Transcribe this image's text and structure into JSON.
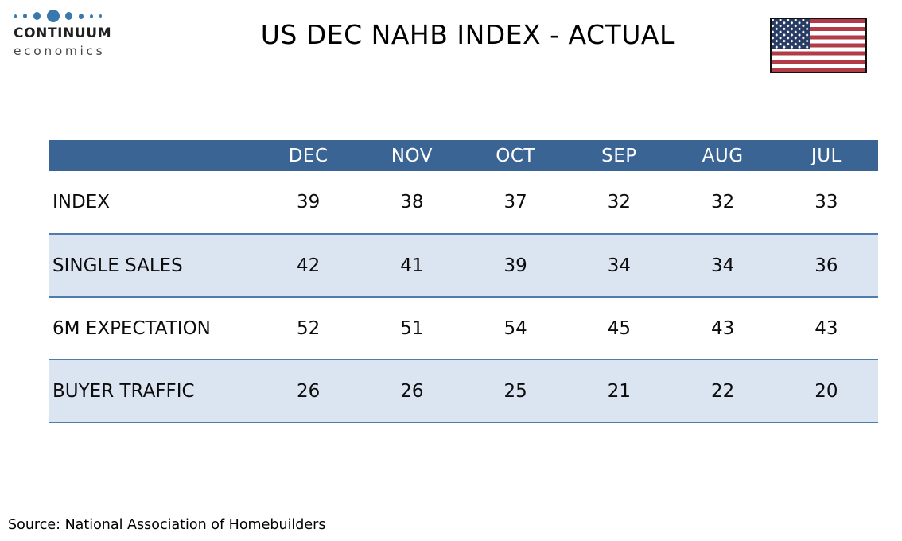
{
  "brand": {
    "name_top": "CONTINUUM",
    "name_bottom": "economics",
    "dot_color": "#3878ad"
  },
  "title": "US DEC NAHB INDEX - ACTUAL",
  "flag": {
    "country": "united-states"
  },
  "chart_data": {
    "type": "table",
    "title": "US DEC NAHB INDEX - ACTUAL",
    "categories": [
      "DEC",
      "NOV",
      "OCT",
      "SEP",
      "AUG",
      "JUL"
    ],
    "series": [
      {
        "name": "INDEX",
        "values": [
          39,
          38,
          37,
          32,
          32,
          33
        ]
      },
      {
        "name": "SINGLE SALES",
        "values": [
          42,
          41,
          39,
          34,
          34,
          36
        ]
      },
      {
        "name": "6M EXPECTATION",
        "values": [
          52,
          51,
          54,
          45,
          43,
          43
        ]
      },
      {
        "name": "BUYER TRAFFIC",
        "values": [
          26,
          26,
          25,
          21,
          22,
          20
        ]
      }
    ],
    "layout": {
      "header_bg": "#3a6494",
      "header_text": "#ffffff",
      "band_bg": "#dbe5f1",
      "band_border": "#4f7cac",
      "banded_rows": [
        "SINGLE SALES",
        "BUYER TRAFFIC"
      ]
    }
  },
  "footer": {
    "source": "Source: National Association of Homebuilders"
  }
}
